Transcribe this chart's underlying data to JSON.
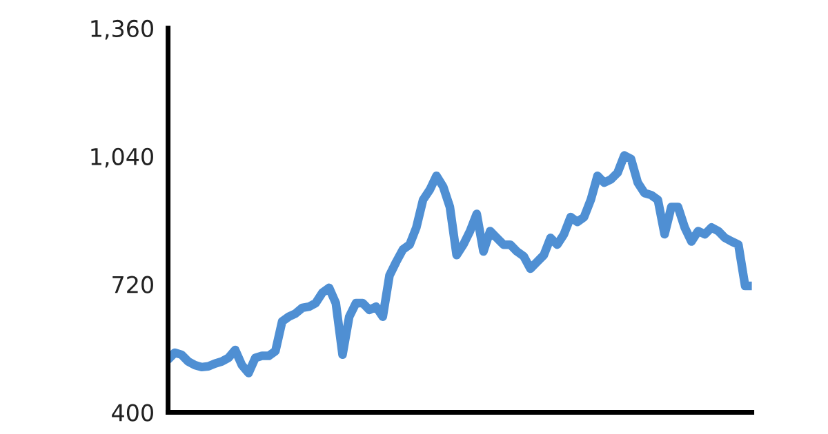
{
  "chart_data": {
    "type": "line",
    "categories": [
      null,
      null,
      null,
      null,
      null,
      null,
      null,
      null,
      null,
      null,
      null,
      null,
      null,
      null,
      null,
      null,
      null,
      null,
      null,
      null,
      null,
      null,
      null,
      null,
      null,
      null,
      null,
      null,
      null,
      null,
      null,
      null,
      null,
      null,
      null,
      null,
      null,
      null,
      null,
      null,
      null,
      null,
      null,
      null,
      null,
      null,
      null,
      null,
      null,
      null,
      null,
      null,
      null,
      null,
      null,
      null,
      null,
      null,
      null,
      null,
      null,
      null,
      null,
      null,
      null,
      null,
      null,
      null,
      null,
      null,
      null,
      null,
      null,
      null,
      null,
      null,
      null,
      null,
      null,
      null,
      null,
      null,
      null,
      null,
      null,
      null,
      null,
      null
    ],
    "series": [
      {
        "color": "#4f8fd3",
        "values": [
          532,
          549,
          544,
          527,
          518,
          513,
          515,
          522,
          527,
          536,
          556,
          518,
          498,
          536,
          541,
          541,
          553,
          627,
          639,
          647,
          661,
          664,
          673,
          699,
          711,
          673,
          544,
          639,
          673,
          673,
          656,
          664,
          639,
          742,
          776,
          807,
          819,
          862,
          931,
          956,
          991,
          964,
          913,
          793,
          819,
          853,
          896,
          802,
          853,
          836,
          819,
          819,
          802,
          790,
          759,
          776,
          793,
          836,
          819,
          845,
          888,
          876,
          888,
          931,
          991,
          974,
          982,
          999,
          1042,
          1033,
          974,
          948,
          943,
          931,
          845,
          913,
          913,
          862,
          827,
          853,
          845,
          862,
          853,
          836,
          827,
          819,
          716,
          716
        ]
      }
    ],
    "ylim": [
      400,
      1360
    ],
    "yticks": [
      400,
      720,
      {
        "value": 1040,
        "label": "1,040"
      },
      {
        "value": 1360,
        "label": "1,360"
      }
    ],
    "tick_labels": "y",
    "grid": false,
    "legend": false
  }
}
